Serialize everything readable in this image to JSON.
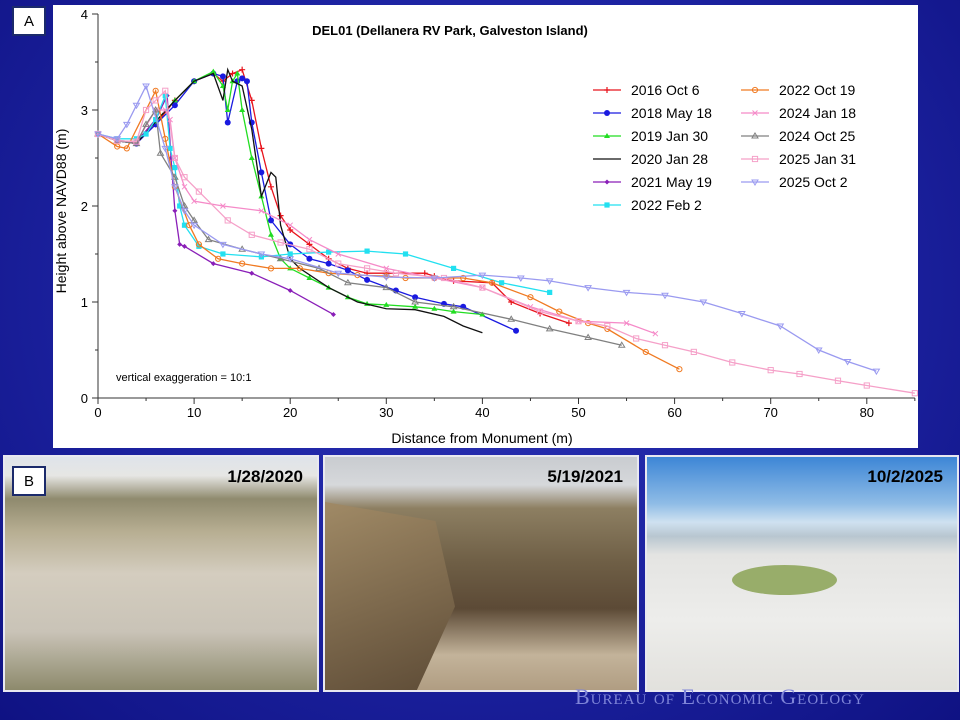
{
  "panel_a_label": "A",
  "panel_b_label": "B",
  "footer": "Bureau of Economic Geology",
  "photos": [
    {
      "date": "1/28/2020"
    },
    {
      "date": "5/19/2021"
    },
    {
      "date": "10/2/2025"
    }
  ],
  "chart_data": {
    "type": "line",
    "title": "DEL01 (Dellanera RV Park, Galveston Island)",
    "xlabel": "Distance from Monument (m)",
    "ylabel": "Height above NAVD88 (m)",
    "annotation": "vertical exaggeration = 10:1",
    "xlim": [
      0,
      85
    ],
    "ylim": [
      0,
      4
    ],
    "xticks": [
      0,
      10,
      20,
      30,
      40,
      50,
      60,
      70,
      80
    ],
    "yticks": [
      0,
      1,
      2,
      3,
      4
    ],
    "grid": false,
    "legend_position": "top-right",
    "series": [
      {
        "name": "2016 Oct 6",
        "color": "#e8141c",
        "marker": "plus",
        "points": [
          [
            0,
            2.75
          ],
          [
            2,
            2.68
          ],
          [
            4,
            2.66
          ],
          [
            6,
            2.85
          ],
          [
            8,
            3.1
          ],
          [
            10,
            3.3
          ],
          [
            12,
            3.38
          ],
          [
            13,
            3.3
          ],
          [
            14,
            3.38
          ],
          [
            15,
            3.42
          ],
          [
            16,
            3.1
          ],
          [
            17,
            2.6
          ],
          [
            18,
            2.2
          ],
          [
            19,
            1.9
          ],
          [
            20,
            1.75
          ],
          [
            22,
            1.6
          ],
          [
            24,
            1.45
          ],
          [
            26,
            1.35
          ],
          [
            28,
            1.3
          ],
          [
            30,
            1.3
          ],
          [
            34,
            1.3
          ],
          [
            35,
            1.27
          ],
          [
            37,
            1.22
          ],
          [
            41,
            1.2
          ],
          [
            43,
            1.0
          ],
          [
            46,
            0.88
          ],
          [
            49,
            0.78
          ]
        ]
      },
      {
        "name": "2018 May 18",
        "color": "#1a1ae0",
        "marker": "dot",
        "points": [
          [
            0,
            2.75
          ],
          [
            2,
            2.68
          ],
          [
            4,
            2.65
          ],
          [
            6,
            2.85
          ],
          [
            8,
            3.05
          ],
          [
            10,
            3.3
          ],
          [
            12,
            3.38
          ],
          [
            13,
            3.35
          ],
          [
            13.5,
            2.87
          ],
          [
            14.5,
            3.3
          ],
          [
            15,
            3.33
          ],
          [
            15.5,
            3.3
          ],
          [
            16,
            2.87
          ],
          [
            17,
            2.35
          ],
          [
            18,
            1.85
          ],
          [
            20,
            1.6
          ],
          [
            22,
            1.45
          ],
          [
            24,
            1.4
          ],
          [
            26,
            1.33
          ],
          [
            28,
            1.23
          ],
          [
            31,
            1.12
          ],
          [
            33,
            1.05
          ],
          [
            36,
            0.98
          ],
          [
            38,
            0.95
          ],
          [
            43.5,
            0.7
          ]
        ]
      },
      {
        "name": "2019 Jan 30",
        "color": "#22dd22",
        "marker": "triangle-filled",
        "points": [
          [
            0,
            2.75
          ],
          [
            2,
            2.68
          ],
          [
            4,
            2.67
          ],
          [
            6,
            2.88
          ],
          [
            8,
            3.1
          ],
          [
            10,
            3.3
          ],
          [
            12,
            3.4
          ],
          [
            13,
            3.25
          ],
          [
            13.5,
            3.0
          ],
          [
            14,
            3.3
          ],
          [
            14.5,
            3.38
          ],
          [
            15,
            3.0
          ],
          [
            16,
            2.5
          ],
          [
            17,
            2.1
          ],
          [
            18,
            1.7
          ],
          [
            19,
            1.45
          ],
          [
            20,
            1.35
          ],
          [
            22,
            1.25
          ],
          [
            24,
            1.15
          ],
          [
            26,
            1.05
          ],
          [
            28,
            0.98
          ],
          [
            30,
            0.97
          ],
          [
            33,
            0.95
          ],
          [
            35,
            0.93
          ],
          [
            37,
            0.9
          ],
          [
            40,
            0.87
          ]
        ]
      },
      {
        "name": "2020 Jan 28",
        "color": "#111111",
        "marker": "none",
        "points": [
          [
            0,
            2.75
          ],
          [
            2,
            2.68
          ],
          [
            4,
            2.65
          ],
          [
            6,
            2.88
          ],
          [
            8,
            3.1
          ],
          [
            10,
            3.3
          ],
          [
            12,
            3.38
          ],
          [
            13,
            3.1
          ],
          [
            13.5,
            3.42
          ],
          [
            14,
            3.3
          ],
          [
            15,
            3.25
          ],
          [
            16,
            2.8
          ],
          [
            17,
            2.1
          ],
          [
            18,
            2.35
          ],
          [
            18.5,
            2.3
          ],
          [
            19,
            1.8
          ],
          [
            20,
            1.45
          ],
          [
            21,
            1.35
          ],
          [
            24,
            1.15
          ],
          [
            27,
            1.0
          ],
          [
            30,
            0.93
          ],
          [
            33,
            0.92
          ],
          [
            36,
            0.85
          ],
          [
            38,
            0.75
          ],
          [
            40,
            0.68
          ]
        ]
      },
      {
        "name": "2021 May 19",
        "color": "#8a1fb8",
        "marker": "diamond",
        "points": [
          [
            0,
            2.75
          ],
          [
            2,
            2.68
          ],
          [
            4,
            2.67
          ],
          [
            6,
            2.9
          ],
          [
            7.2,
            3.15
          ],
          [
            7.6,
            2.5
          ],
          [
            8,
            1.95
          ],
          [
            8.5,
            1.6
          ],
          [
            9,
            1.58
          ],
          [
            12,
            1.4
          ],
          [
            16,
            1.3
          ],
          [
            20,
            1.12
          ],
          [
            24.5,
            0.87
          ]
        ]
      },
      {
        "name": "2022 Feb 2",
        "color": "#22e0f0",
        "marker": "square-filled",
        "points": [
          [
            0,
            2.75
          ],
          [
            2,
            2.7
          ],
          [
            4,
            2.7
          ],
          [
            5,
            2.75
          ],
          [
            6,
            2.9
          ],
          [
            7,
            3.15
          ],
          [
            7.5,
            2.6
          ],
          [
            8,
            2.4
          ],
          [
            8.5,
            2.0
          ],
          [
            9,
            1.8
          ],
          [
            10.5,
            1.58
          ],
          [
            13,
            1.5
          ],
          [
            17,
            1.47
          ],
          [
            20,
            1.5
          ],
          [
            24,
            1.52
          ],
          [
            28,
            1.53
          ],
          [
            32,
            1.5
          ],
          [
            37,
            1.35
          ],
          [
            42,
            1.2
          ],
          [
            47,
            1.1
          ]
        ]
      },
      {
        "name": "2022 Oct 19",
        "color": "#f07a22",
        "marker": "circle-open",
        "points": [
          [
            0,
            2.75
          ],
          [
            2,
            2.62
          ],
          [
            3,
            2.6
          ],
          [
            6,
            3.2
          ],
          [
            7,
            2.7
          ],
          [
            8,
            2.2
          ],
          [
            9.5,
            1.8
          ],
          [
            10.5,
            1.6
          ],
          [
            12.5,
            1.45
          ],
          [
            15,
            1.4
          ],
          [
            18,
            1.35
          ],
          [
            21,
            1.35
          ],
          [
            24,
            1.3
          ],
          [
            27,
            1.28
          ],
          [
            30,
            1.27
          ],
          [
            32,
            1.25
          ],
          [
            35,
            1.25
          ],
          [
            38,
            1.25
          ],
          [
            41,
            1.2
          ],
          [
            45,
            1.05
          ],
          [
            48,
            0.9
          ],
          [
            51,
            0.78
          ],
          [
            53,
            0.72
          ],
          [
            57,
            0.48
          ],
          [
            60.5,
            0.3
          ]
        ]
      },
      {
        "name": "2024 Jan 18",
        "color": "#f58ac8",
        "marker": "x",
        "points": [
          [
            0,
            2.75
          ],
          [
            2,
            2.68
          ],
          [
            4,
            2.67
          ],
          [
            6,
            3.0
          ],
          [
            7,
            3.0
          ],
          [
            7.5,
            2.9
          ],
          [
            8,
            2.5
          ],
          [
            9,
            2.2
          ],
          [
            10,
            2.05
          ],
          [
            13,
            2.0
          ],
          [
            17,
            1.95
          ],
          [
            20,
            1.8
          ],
          [
            22,
            1.65
          ],
          [
            25,
            1.5
          ],
          [
            30,
            1.35
          ],
          [
            35,
            1.25
          ],
          [
            40,
            1.15
          ],
          [
            45,
            0.95
          ],
          [
            50,
            0.8
          ],
          [
            55,
            0.78
          ],
          [
            58,
            0.67
          ]
        ]
      },
      {
        "name": "2024 Oct 25",
        "color": "#808080",
        "marker": "triangle-open",
        "points": [
          [
            0,
            2.75
          ],
          [
            2,
            2.68
          ],
          [
            4,
            2.65
          ],
          [
            5,
            2.85
          ],
          [
            6,
            3.0
          ],
          [
            6.5,
            2.55
          ],
          [
            8,
            2.3
          ],
          [
            9,
            2.0
          ],
          [
            10,
            1.85
          ],
          [
            11.5,
            1.65
          ],
          [
            15,
            1.55
          ],
          [
            19,
            1.45
          ],
          [
            23,
            1.35
          ],
          [
            26,
            1.2
          ],
          [
            30,
            1.15
          ],
          [
            33,
            1.0
          ],
          [
            37,
            0.95
          ],
          [
            43,
            0.82
          ],
          [
            47,
            0.72
          ],
          [
            51,
            0.63
          ],
          [
            54.5,
            0.55
          ]
        ]
      },
      {
        "name": "2025 Jan 31",
        "color": "#f5a0c8",
        "marker": "square-open",
        "points": [
          [
            0,
            2.75
          ],
          [
            2,
            2.68
          ],
          [
            4,
            2.67
          ],
          [
            5,
            3.0
          ],
          [
            6,
            3.1
          ],
          [
            7,
            3.2
          ],
          [
            8,
            2.5
          ],
          [
            9,
            2.3
          ],
          [
            10.5,
            2.15
          ],
          [
            13.5,
            1.85
          ],
          [
            16,
            1.7
          ],
          [
            19,
            1.62
          ],
          [
            22,
            1.55
          ],
          [
            25,
            1.4
          ],
          [
            28,
            1.35
          ],
          [
            31,
            1.3
          ],
          [
            36,
            1.25
          ],
          [
            40,
            1.15
          ],
          [
            46,
            0.9
          ],
          [
            50,
            0.8
          ],
          [
            53,
            0.75
          ],
          [
            56,
            0.62
          ],
          [
            59,
            0.55
          ],
          [
            62,
            0.48
          ],
          [
            66,
            0.37
          ],
          [
            70,
            0.29
          ],
          [
            73,
            0.25
          ],
          [
            77,
            0.18
          ],
          [
            80,
            0.13
          ],
          [
            85,
            0.05
          ]
        ]
      },
      {
        "name": "2025 Oct 2",
        "color": "#9a9af0",
        "marker": "triangle-down-open",
        "points": [
          [
            0,
            2.75
          ],
          [
            2,
            2.7
          ],
          [
            3,
            2.85
          ],
          [
            4,
            3.05
          ],
          [
            5,
            3.25
          ],
          [
            7,
            2.6
          ],
          [
            8,
            2.2
          ],
          [
            9,
            1.95
          ],
          [
            10,
            1.8
          ],
          [
            13,
            1.6
          ],
          [
            17,
            1.5
          ],
          [
            20,
            1.45
          ],
          [
            25,
            1.3
          ],
          [
            30,
            1.26
          ],
          [
            35,
            1.25
          ],
          [
            40,
            1.28
          ],
          [
            44,
            1.25
          ],
          [
            47,
            1.22
          ],
          [
            51,
            1.15
          ],
          [
            55,
            1.1
          ],
          [
            59,
            1.07
          ],
          [
            63,
            1.0
          ],
          [
            67,
            0.88
          ],
          [
            71,
            0.75
          ],
          [
            75,
            0.5
          ],
          [
            78,
            0.38
          ],
          [
            81,
            0.28
          ]
        ]
      }
    ]
  }
}
